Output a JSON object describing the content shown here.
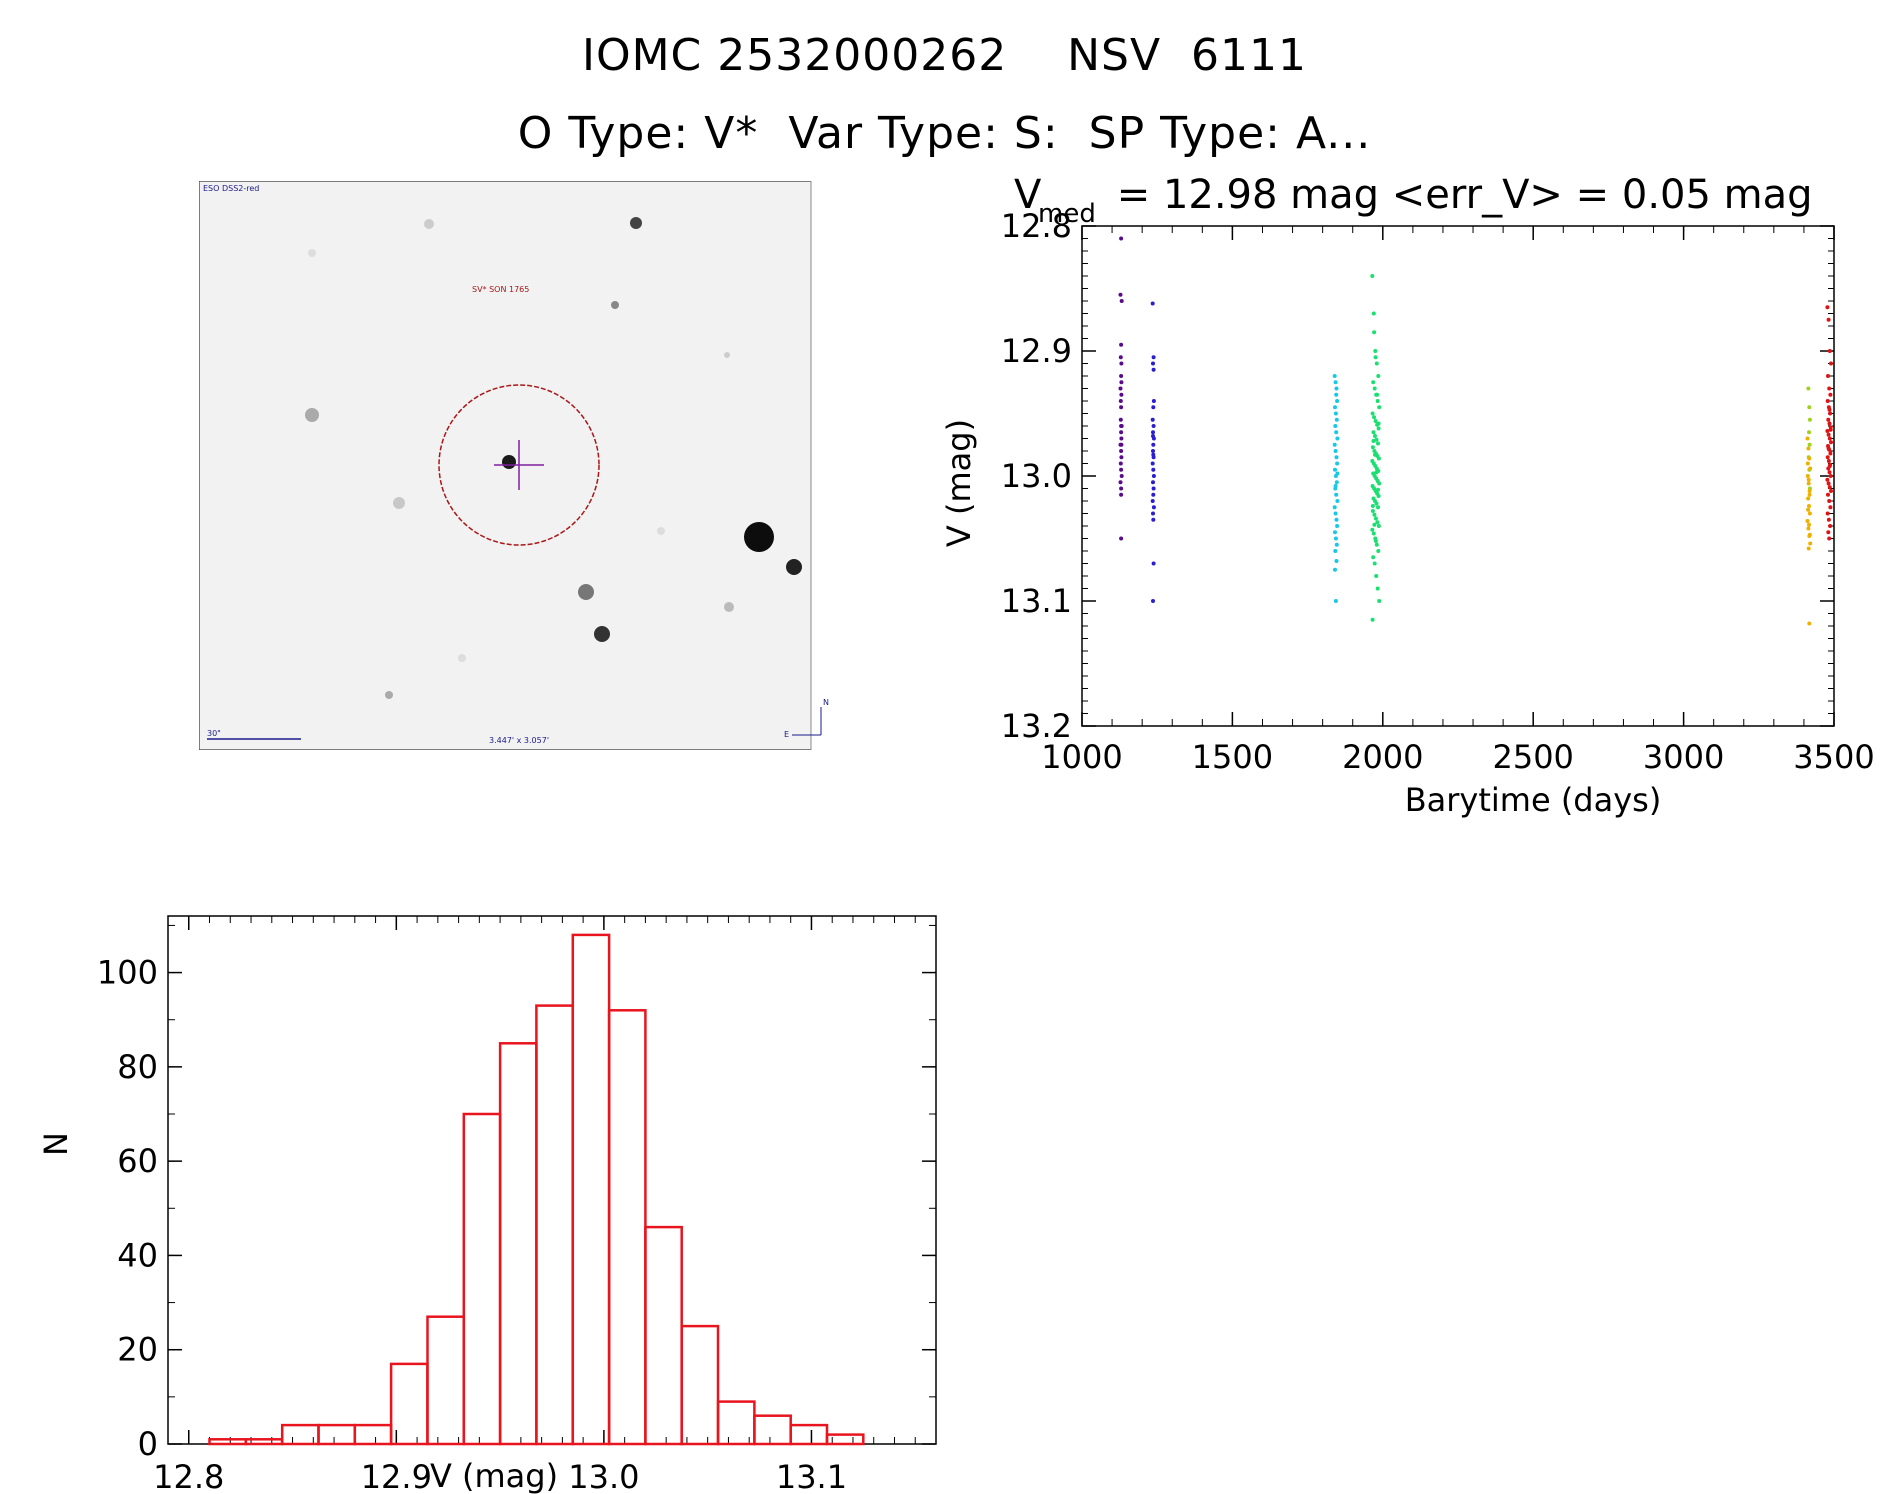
{
  "title": {
    "line1": "IOMC 2532000262    NSV  6111",
    "line2": "O Type: V*  Var Type: S:  SP Type: A..."
  },
  "finder_chart": {
    "survey_label": "ESO DSS2-red",
    "object_label": "SV* SON 1765",
    "scale_label": "30\"",
    "fov_label": "3.447' x 3.057'",
    "north_label": "N",
    "east_label": "E"
  },
  "chart_data": [
    {
      "type": "scatter",
      "title_main": "V",
      "title_sub": "med",
      "title_rest": " = 12.98 mag <err_V> = 0.05 mag",
      "xlabel": "Barytime (days)",
      "ylabel": "V (mag)",
      "xlim": [
        1000,
        3500
      ],
      "ylim": [
        13.2,
        12.8
      ],
      "xticks": [
        "1000",
        "1500",
        "2000",
        "2500",
        "3000",
        "3500"
      ],
      "yticks": [
        "12.8",
        "12.9",
        "13.0",
        "13.1",
        "13.2"
      ],
      "series": [
        {
          "name": "epoch1",
          "color": "#5a0a8c",
          "x": [
            1130,
            1128,
            1132,
            1130,
            1129,
            1131,
            1130,
            1128,
            1131,
            1130,
            1129,
            1132,
            1130,
            1131,
            1128,
            1130,
            1131,
            1129,
            1130,
            1132,
            1128,
            1130,
            1131,
            1130,
            1129,
            1130,
            1131,
            1130
          ],
          "y": [
            12.81,
            12.855,
            12.86,
            12.895,
            12.905,
            12.91,
            12.92,
            12.93,
            12.935,
            12.945,
            12.955,
            12.96,
            12.965,
            12.97,
            12.975,
            12.98,
            12.985,
            12.99,
            12.995,
            13.0,
            13.005,
            13.01,
            12.975,
            12.96,
            12.94,
            13.015,
            12.925,
            13.05
          ]
        },
        {
          "name": "epoch2",
          "color": "#2a1ed0",
          "x": [
            1235,
            1238,
            1236,
            1239,
            1237,
            1235,
            1238,
            1236,
            1239,
            1237,
            1236,
            1238,
            1235,
            1237,
            1239,
            1236,
            1238,
            1237,
            1235,
            1239,
            1236,
            1237,
            1238,
            1236,
            1237,
            1238,
            1236
          ],
          "y": [
            12.862,
            12.905,
            12.91,
            12.94,
            12.945,
            12.955,
            12.96,
            12.965,
            12.97,
            12.975,
            12.98,
            12.985,
            12.99,
            12.995,
            13.0,
            13.005,
            13.01,
            13.015,
            13.02,
            13.025,
            13.03,
            13.035,
            12.915,
            12.968,
            12.983,
            13.07,
            13.1
          ]
        },
        {
          "name": "epoch3",
          "color": "#18c8e8",
          "x": [
            1840,
            1843,
            1846,
            1848,
            1841,
            1844,
            1847,
            1842,
            1845,
            1849,
            1840,
            1843,
            1846,
            1848,
            1841,
            1844,
            1847,
            1842,
            1845,
            1849,
            1840,
            1843,
            1846,
            1848,
            1841,
            1844,
            1847,
            1842,
            1845,
            1849,
            1843,
            1846,
            1841,
            1844
          ],
          "y": [
            12.92,
            12.925,
            12.93,
            12.94,
            12.945,
            12.95,
            12.955,
            12.96,
            12.965,
            12.97,
            12.975,
            12.98,
            12.985,
            12.99,
            12.995,
            13.0,
            13.005,
            13.01,
            13.015,
            13.02,
            13.025,
            13.03,
            13.035,
            13.04,
            13.045,
            13.05,
            13.055,
            13.06,
            12.935,
            12.998,
            13.008,
            13.068,
            13.075,
            13.1
          ]
        },
        {
          "name": "epoch4",
          "color": "#19e070",
          "x": [
            1965,
            1970,
            1975,
            1980,
            1985,
            1968,
            1973,
            1978,
            1983,
            1988,
            1966,
            1971,
            1976,
            1981,
            1986,
            1969,
            1974,
            1979,
            1984,
            1967,
            1972,
            1977,
            1982,
            1987,
            1965,
            1970,
            1975,
            1980,
            1985,
            1968,
            1973,
            1978,
            1983,
            1988,
            1966,
            1971,
            1976,
            1981,
            1986,
            1969,
            1974,
            1979,
            1984,
            1967,
            1972,
            1977,
            1982,
            1987,
            1965,
            1970,
            1975,
            1980,
            1985,
            1968,
            1973,
            1978,
            1983,
            1988,
            1966,
            1971,
            1976,
            1981,
            1986,
            1969,
            1974,
            1979,
            1984,
            1967,
            1972,
            1977
          ],
          "y": [
            12.84,
            12.87,
            12.9,
            12.91,
            12.92,
            12.925,
            12.93,
            12.935,
            12.94,
            12.945,
            12.95,
            12.953,
            12.956,
            12.959,
            12.962,
            12.965,
            12.968,
            12.971,
            12.974,
            12.977,
            12.98,
            12.982,
            12.984,
            12.986,
            12.988,
            12.99,
            12.992,
            12.994,
            12.996,
            12.998,
            13.0,
            13.002,
            13.004,
            13.006,
            13.008,
            13.01,
            13.012,
            13.014,
            13.016,
            13.018,
            13.02,
            13.022,
            13.025,
            13.028,
            13.031,
            13.034,
            13.037,
            13.04,
            13.043,
            13.046,
            13.05,
            13.055,
            13.06,
            13.065,
            13.07,
            13.08,
            13.09,
            13.1,
            13.115,
            12.885,
            12.905,
            12.935,
            12.958,
            12.972,
            12.983,
            12.997,
            13.011,
            13.024,
            13.039,
            13.052
          ]
        },
        {
          "name": "epoch5",
          "color": "#9fd21a",
          "x": [
            3415,
            3418,
            3420,
            3417,
            3419,
            3416,
            3418,
            3420
          ],
          "y": [
            12.93,
            12.945,
            12.955,
            12.965,
            12.975,
            12.985,
            12.995,
            13.01
          ]
        },
        {
          "name": "epoch6",
          "color": "#f0b000",
          "x": [
            3412,
            3415,
            3418,
            3421,
            3413,
            3416,
            3419,
            3414,
            3417,
            3420,
            3412,
            3415,
            3418,
            3421,
            3413,
            3416,
            3419,
            3414,
            3417,
            3420,
            3416,
            3418
          ],
          "y": [
            12.97,
            12.978,
            12.986,
            12.994,
            13.0,
            13.006,
            13.012,
            13.018,
            13.024,
            13.03,
            13.036,
            13.042,
            13.048,
            13.054,
            12.99,
            13.003,
            13.015,
            13.027,
            13.039,
            13.047,
            13.058,
            13.118
          ]
        },
        {
          "name": "epoch7",
          "color": "#e01414",
          "x": [
            3478,
            3482,
            3486,
            3490,
            3480,
            3484,
            3488,
            3479,
            3483,
            3487,
            3481,
            3485,
            3489,
            3478,
            3482,
            3486,
            3490,
            3480,
            3484,
            3488,
            3479,
            3483,
            3487,
            3481,
            3485,
            3489,
            3478,
            3482,
            3486,
            3490,
            3480,
            3484,
            3488,
            3479,
            3483,
            3487,
            3481,
            3485,
            3489,
            3482,
            3486,
            3484
          ],
          "y": [
            12.865,
            12.875,
            12.9,
            12.91,
            12.92,
            12.93,
            12.935,
            12.94,
            12.945,
            12.95,
            12.955,
            12.958,
            12.961,
            12.964,
            12.967,
            12.97,
            12.973,
            12.976,
            12.979,
            12.982,
            12.985,
            12.988,
            12.991,
            12.994,
            12.997,
            13.0,
            13.003,
            13.006,
            13.009,
            13.012,
            13.015,
            13.02,
            13.025,
            13.03,
            13.035,
            13.04,
            13.045,
            12.947,
            12.963,
            12.978,
            12.992,
            13.05
          ]
        }
      ]
    },
    {
      "type": "bar",
      "xlabel": "V (mag)",
      "ylabel": "N",
      "xlim": [
        12.79,
        13.16
      ],
      "ylim": [
        0,
        112
      ],
      "xticks": [
        "12.8",
        "12.9",
        "13.0",
        "13.1"
      ],
      "yticks": [
        "0",
        "20",
        "40",
        "60",
        "80",
        "100"
      ],
      "bin_width": 0.0175,
      "bin_starts": [
        12.81,
        12.8275,
        12.845,
        12.8625,
        12.88,
        12.8975,
        12.915,
        12.9325,
        12.95,
        12.9675,
        12.985,
        13.0025,
        13.02,
        13.0375,
        13.055,
        13.0725,
        13.09,
        13.1075
      ],
      "counts": [
        1,
        1,
        4,
        4,
        4,
        17,
        27,
        70,
        85,
        93,
        108,
        92,
        46,
        25,
        9,
        6,
        4,
        2
      ],
      "color": "#e8141e"
    }
  ]
}
